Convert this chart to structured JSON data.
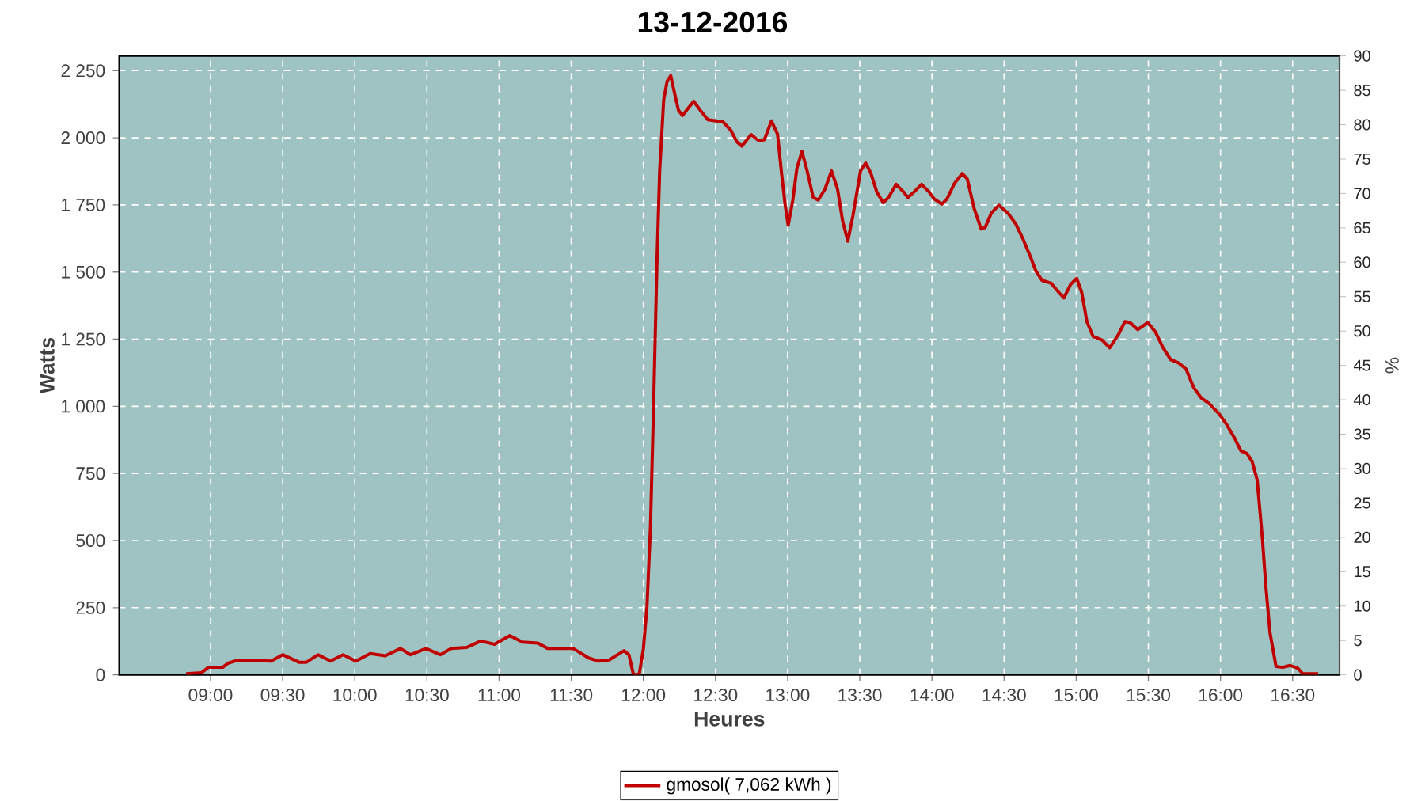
{
  "chart_data": {
    "type": "line",
    "title": "13-12-2016",
    "xlabel": "Heures",
    "ylabel": "Watts",
    "y2label": "%",
    "x": [
      8.831,
      8.937,
      8.986,
      9.085,
      9.12,
      9.19,
      9.42,
      9.5,
      9.613,
      9.665,
      9.746,
      9.831,
      9.919,
      10.007,
      10.106,
      10.211,
      10.317,
      10.387,
      10.493,
      10.592,
      10.669,
      10.775,
      10.873,
      10.968,
      11.074,
      11.162,
      11.268,
      11.338,
      11.514,
      11.62,
      11.69,
      11.761,
      11.866,
      11.9,
      11.93,
      11.937,
      11.972,
      12.0,
      12.025,
      12.049,
      12.07,
      12.095,
      12.113,
      12.141,
      12.165,
      12.19,
      12.218,
      12.243,
      12.271,
      12.306,
      12.349,
      12.394,
      12.447,
      12.553,
      12.606,
      12.648,
      12.683,
      12.747,
      12.8,
      12.839,
      12.888,
      12.93,
      12.958,
      12.983,
      13.004,
      13.036,
      13.064,
      13.099,
      13.135,
      13.177,
      13.212,
      13.258,
      13.304,
      13.346,
      13.381,
      13.417,
      13.452,
      13.505,
      13.54,
      13.575,
      13.618,
      13.663,
      13.699,
      13.752,
      13.804,
      13.833,
      13.875,
      13.928,
      13.981,
      14.016,
      14.069,
      14.104,
      14.157,
      14.21,
      14.245,
      14.291,
      14.341,
      14.369,
      14.411,
      14.464,
      14.527,
      14.58,
      14.633,
      14.686,
      14.721,
      14.763,
      14.827,
      14.88,
      14.915,
      14.961,
      15.003,
      15.038,
      15.074,
      15.116,
      15.179,
      15.232,
      15.292,
      15.338,
      15.373,
      15.426,
      15.496,
      15.549,
      15.602,
      15.655,
      15.708,
      15.761,
      15.814,
      15.867,
      15.92,
      15.99,
      16.043,
      16.096,
      16.142,
      16.184,
      16.219,
      16.254,
      16.29,
      16.314,
      16.343,
      16.385,
      16.431,
      16.483,
      16.536,
      16.571,
      16.677
    ],
    "series": [
      {
        "name": "gmosol( 7,062 kWh )",
        "color": "#c00000",
        "values": [
          4,
          8,
          28,
          28,
          43,
          55,
          51,
          75,
          47,
          47,
          75,
          51,
          75,
          51,
          79,
          71,
          98,
          75,
          98,
          75,
          98,
          102,
          126,
          114,
          146,
          122,
          118,
          98,
          98,
          63,
          51,
          55,
          90,
          75,
          4,
          0,
          4,
          96,
          254,
          549,
          982,
          1552,
          1877,
          2142,
          2211,
          2231,
          2162,
          2103,
          2083,
          2107,
          2136,
          2103,
          2067,
          2059,
          2028,
          1985,
          1969,
          2012,
          1989,
          1993,
          2063,
          2014,
          1867,
          1749,
          1674,
          1768,
          1886,
          1949,
          1877,
          1778,
          1768,
          1808,
          1877,
          1808,
          1690,
          1615,
          1709,
          1877,
          1906,
          1871,
          1798,
          1758,
          1778,
          1827,
          1798,
          1778,
          1798,
          1827,
          1798,
          1772,
          1753,
          1772,
          1831,
          1867,
          1847,
          1739,
          1660,
          1666,
          1719,
          1749,
          1719,
          1680,
          1621,
          1552,
          1503,
          1469,
          1458,
          1424,
          1404,
          1454,
          1477,
          1424,
          1316,
          1261,
          1247,
          1218,
          1267,
          1316,
          1312,
          1286,
          1312,
          1277,
          1218,
          1174,
          1162,
          1139,
          1070,
          1031,
          1011,
          972,
          932,
          883,
          834,
          824,
          795,
          726,
          509,
          332,
          157,
          31,
          28,
          35,
          24,
          4,
          4
        ]
      }
    ],
    "xlim": [
      8.367,
      16.825
    ],
    "xticks": [
      {
        "value": 9,
        "label": "09:00"
      },
      {
        "value": 9.5,
        "label": "09:30"
      },
      {
        "value": 10,
        "label": "10:00"
      },
      {
        "value": 10.5,
        "label": "10:30"
      },
      {
        "value": 11,
        "label": "11:00"
      },
      {
        "value": 11.5,
        "label": "11:30"
      },
      {
        "value": 12,
        "label": "12:00"
      },
      {
        "value": 12.5,
        "label": "12:30"
      },
      {
        "value": 13,
        "label": "13:00"
      },
      {
        "value": 13.5,
        "label": "13:30"
      },
      {
        "value": 14,
        "label": "14:00"
      },
      {
        "value": 14.5,
        "label": "14:30"
      },
      {
        "value": 15,
        "label": "15:00"
      },
      {
        "value": 15.5,
        "label": "15:30"
      },
      {
        "value": 16,
        "label": "16:00"
      },
      {
        "value": 16.5,
        "label": "16:30"
      }
    ],
    "ylim": [
      0,
      2305
    ],
    "yticks": [
      0,
      250,
      500,
      750,
      {
        "value": 1000,
        "label": "1 000"
      },
      {
        "value": 1250,
        "label": "1 250"
      },
      {
        "value": 1500,
        "label": "1 500"
      },
      {
        "value": 1750,
        "label": "1 750"
      },
      {
        "value": 2000,
        "label": "2 000"
      },
      {
        "value": 2250,
        "label": "2 250"
      }
    ],
    "y2lim": [
      0,
      90
    ],
    "y2ticks": [
      0,
      5,
      10,
      15,
      20,
      25,
      30,
      35,
      40,
      45,
      50,
      55,
      60,
      65,
      70,
      75,
      80,
      85,
      90
    ],
    "grid": true,
    "legend": "bottom"
  }
}
